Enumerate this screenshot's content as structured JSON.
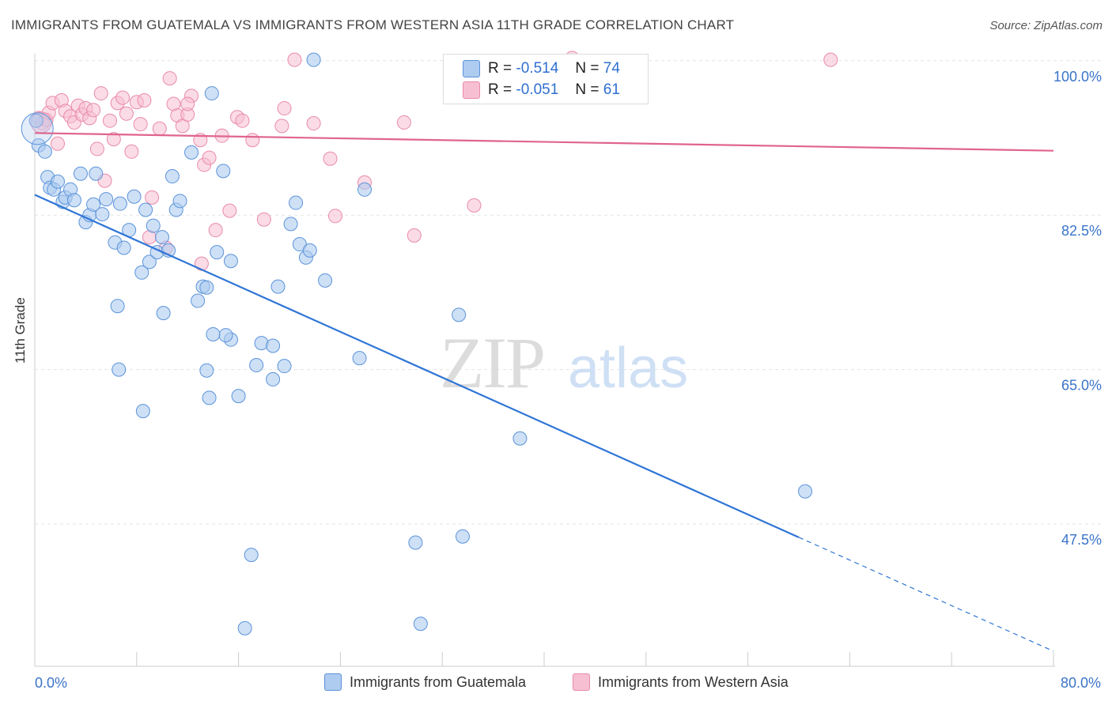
{
  "title": "IMMIGRANTS FROM GUATEMALA VS IMMIGRANTS FROM WESTERN ASIA 11TH GRADE CORRELATION CHART",
  "source": "Source: ZipAtlas.com",
  "watermark": {
    "zip": "ZIP",
    "atlas": "atlas"
  },
  "legend_top": [
    {
      "r_label": "R =",
      "r_value": "-0.514",
      "n_label": "N =",
      "n_value": "74"
    },
    {
      "r_label": "R =",
      "r_value": "-0.051",
      "n_label": "N =",
      "n_value": "61"
    }
  ],
  "legend_bottom": [
    "Immigrants from Guatemala",
    "Immigrants from Western Asia"
  ],
  "colors": {
    "blue_fill": "#aecbf0",
    "blue_stroke": "#5b93da",
    "blue_line": "#2f75d6",
    "pink_fill": "#f7c0d2",
    "pink_stroke": "#e98aab",
    "pink_line": "#e0648e",
    "axis_text": "#3a74c9",
    "grid": "#e3e3e3"
  },
  "chart_data": {
    "type": "scatter",
    "xlabel": "",
    "ylabel": "11th Grade",
    "xlim": [
      0,
      80
    ],
    "ylim": [
      33.0,
      101.5
    ],
    "x_tick_labels": [
      {
        "v": 0,
        "t": "0.0%"
      },
      {
        "v": 80,
        "t": "80.0%"
      }
    ],
    "y_tick_labels": [
      {
        "v": 100,
        "t": "100.0%"
      },
      {
        "v": 82.5,
        "t": "82.5%"
      },
      {
        "v": 65,
        "t": "65.0%"
      },
      {
        "v": 47.5,
        "t": "47.5%"
      }
    ],
    "grid": true,
    "legend_position": "top-center",
    "series": [
      {
        "name": "Immigrants from Guatemala",
        "r": -0.514,
        "n": 74,
        "trend": {
          "x0": 0,
          "y0": 84.8,
          "x1": 60,
          "y1": 46.0,
          "x_dash_end": 80,
          "y_dash_end": 33.1
        },
        "points": [
          [
            0.1,
            93.2
          ],
          [
            0.3,
            90.4
          ],
          [
            0.8,
            89.7
          ],
          [
            1.0,
            86.8
          ],
          [
            1.2,
            85.6
          ],
          [
            1.5,
            85.4
          ],
          [
            1.8,
            86.3
          ],
          [
            2.2,
            84.0
          ],
          [
            2.4,
            84.5
          ],
          [
            2.8,
            85.4
          ],
          [
            3.1,
            84.2
          ],
          [
            3.6,
            87.2
          ],
          [
            4.0,
            81.7
          ],
          [
            4.3,
            82.5
          ],
          [
            4.6,
            83.7
          ],
          [
            4.8,
            87.2
          ],
          [
            5.3,
            82.6
          ],
          [
            5.6,
            84.3
          ],
          [
            6.3,
            79.4
          ],
          [
            6.7,
            83.8
          ],
          [
            7.0,
            78.8
          ],
          [
            7.4,
            80.8
          ],
          [
            7.8,
            84.6
          ],
          [
            8.4,
            76.0
          ],
          [
            8.7,
            83.1
          ],
          [
            9.0,
            77.2
          ],
          [
            9.3,
            81.3
          ],
          [
            9.6,
            78.3
          ],
          [
            10.0,
            80.0
          ],
          [
            10.5,
            78.5
          ],
          [
            10.8,
            86.9
          ],
          [
            11.1,
            83.1
          ],
          [
            11.4,
            84.1
          ],
          [
            12.3,
            89.6
          ],
          [
            12.8,
            72.8
          ],
          [
            13.2,
            74.4
          ],
          [
            13.5,
            74.3
          ],
          [
            13.9,
            96.3
          ],
          [
            14.3,
            78.3
          ],
          [
            14.8,
            87.5
          ],
          [
            15.4,
            77.3
          ],
          [
            19.1,
            74.4
          ],
          [
            20.1,
            81.5
          ],
          [
            20.5,
            83.9
          ],
          [
            20.8,
            79.2
          ],
          [
            21.3,
            77.7
          ],
          [
            21.6,
            78.5
          ],
          [
            21.9,
            100.1
          ],
          [
            22.8,
            75.1
          ],
          [
            25.9,
            85.4
          ],
          [
            17.8,
            68.0
          ],
          [
            18.7,
            67.7
          ],
          [
            6.5,
            72.2
          ],
          [
            10.1,
            71.4
          ],
          [
            6.6,
            65.0
          ],
          [
            17.4,
            65.5
          ],
          [
            19.6,
            65.4
          ],
          [
            13.5,
            64.9
          ],
          [
            18.7,
            63.9
          ],
          [
            16.0,
            62.0
          ],
          [
            8.5,
            60.3
          ],
          [
            13.7,
            61.8
          ],
          [
            33.3,
            71.2
          ],
          [
            38.1,
            57.2
          ],
          [
            60.5,
            51.2
          ],
          [
            25.5,
            66.3
          ],
          [
            17.0,
            44.0
          ],
          [
            29.9,
            45.4
          ],
          [
            33.6,
            46.1
          ],
          [
            16.5,
            35.7
          ],
          [
            30.3,
            36.2
          ],
          [
            15.4,
            68.4
          ],
          [
            15.0,
            68.9
          ],
          [
            14.0,
            69.0
          ]
        ]
      },
      {
        "name": "Immigrants from Western Asia",
        "r": -0.051,
        "n": 61,
        "trend": {
          "x0": 0,
          "y0": 91.8,
          "x1": 80,
          "y1": 89.8
        },
        "points": [
          [
            0.3,
            93.5
          ],
          [
            0.6,
            92.9
          ],
          [
            0.9,
            93.3
          ],
          [
            1.1,
            94.1
          ],
          [
            1.4,
            95.2
          ],
          [
            1.8,
            90.6
          ],
          [
            2.1,
            95.5
          ],
          [
            2.4,
            94.3
          ],
          [
            2.8,
            93.7
          ],
          [
            3.1,
            93.0
          ],
          [
            3.4,
            94.9
          ],
          [
            3.7,
            93.9
          ],
          [
            4.0,
            94.6
          ],
          [
            4.3,
            93.5
          ],
          [
            4.6,
            94.4
          ],
          [
            4.9,
            90.0
          ],
          [
            5.2,
            96.3
          ],
          [
            5.5,
            86.4
          ],
          [
            5.9,
            93.2
          ],
          [
            6.2,
            91.1
          ],
          [
            6.5,
            95.2
          ],
          [
            6.9,
            95.8
          ],
          [
            7.2,
            94.0
          ],
          [
            7.6,
            89.7
          ],
          [
            8.0,
            95.3
          ],
          [
            8.3,
            92.8
          ],
          [
            8.6,
            95.5
          ],
          [
            9.0,
            80.0
          ],
          [
            9.2,
            84.5
          ],
          [
            9.8,
            92.3
          ],
          [
            10.3,
            78.8
          ],
          [
            10.6,
            98.0
          ],
          [
            10.9,
            95.1
          ],
          [
            11.2,
            93.8
          ],
          [
            11.6,
            92.6
          ],
          [
            12.0,
            93.9
          ],
          [
            12.3,
            96.0
          ],
          [
            13.0,
            91.0
          ],
          [
            13.3,
            88.2
          ],
          [
            13.7,
            89.0
          ],
          [
            14.2,
            80.8
          ],
          [
            14.7,
            91.5
          ],
          [
            15.3,
            83.0
          ],
          [
            15.9,
            93.6
          ],
          [
            16.3,
            93.2
          ],
          [
            17.1,
            91.0
          ],
          [
            18.0,
            82.0
          ],
          [
            19.4,
            92.6
          ],
          [
            19.6,
            94.6
          ],
          [
            20.4,
            100.1
          ],
          [
            21.9,
            92.9
          ],
          [
            23.2,
            88.9
          ],
          [
            23.6,
            82.4
          ],
          [
            25.9,
            86.2
          ],
          [
            29.0,
            93.0
          ],
          [
            29.8,
            80.2
          ],
          [
            34.5,
            83.6
          ],
          [
            42.2,
            100.3
          ],
          [
            62.5,
            100.1
          ],
          [
            13.1,
            77.0
          ],
          [
            12.0,
            95.1
          ]
        ]
      }
    ]
  }
}
